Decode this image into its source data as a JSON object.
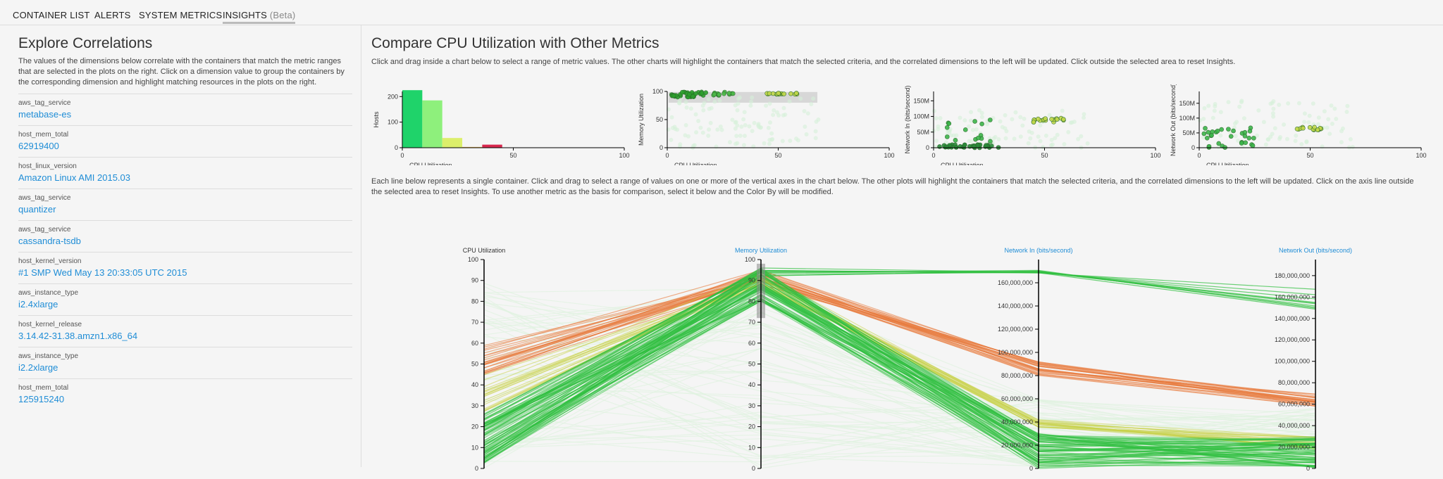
{
  "nav": {
    "tabs": [
      {
        "label": "CONTAINER LIST"
      },
      {
        "label": "ALERTS"
      },
      {
        "label": "SYSTEM METRICS"
      },
      {
        "label": "INSIGHTS",
        "suffix": "(Beta)"
      }
    ]
  },
  "correlations": {
    "title": "Explore Correlations",
    "description": "The values of the dimensions below correlate with the containers that match the metric ranges that are selected in the plots on the right. Click on a dimension value to group the containers by the corresponding dimension and highlight matching resources in the plots on the right.",
    "items": [
      {
        "key": "aws_tag_service",
        "value": "metabase-es"
      },
      {
        "key": "host_mem_total",
        "value": "62919400"
      },
      {
        "key": "host_linux_version",
        "value": "Amazon Linux AMI 2015.03"
      },
      {
        "key": "aws_tag_service",
        "value": "quantizer"
      },
      {
        "key": "aws_tag_service",
        "value": "cassandra-tsdb"
      },
      {
        "key": "host_kernel_version",
        "value": "#1 SMP Wed May 13 20:33:05 UTC 2015"
      },
      {
        "key": "aws_instance_type",
        "value": "i2.4xlarge"
      },
      {
        "key": "host_kernel_release",
        "value": "3.14.42-31.38.amzn1.x86_64"
      },
      {
        "key": "aws_instance_type",
        "value": "i2.2xlarge"
      },
      {
        "key": "host_mem_total",
        "value": "125915240"
      }
    ]
  },
  "compare": {
    "title": "Compare CPU Utilization with Other Metrics",
    "description": "Click and drag inside a chart below to select a range of metric values. The other charts will highlight the containers that match the selected criteria, and the correlated dimensions to the left will be updated. Click outside the selected area to reset Insights.",
    "parallel_description": "Each line below represents a single container. Click and drag to select a range of values on one or more of the vertical axes in the chart below. The other plots will highlight the containers that match the selected criteria, and the correlated dimensions to the left will be updated. Click on the axis line outside the selected area to reset Insights. To use another metric as the basis for comparison, select it below and the Color By will be modified."
  },
  "colors": {
    "link": "#1f8dd6",
    "green": "#2ca02c",
    "bright_green": "#19c44f",
    "yellow_green": "#b9d24a",
    "orange": "#e8833a",
    "red": "#d62728"
  },
  "chart_data": [
    {
      "type": "bar",
      "xlabel": "CPU Utilization",
      "ylabel": "Hosts",
      "xlim": [
        0,
        100
      ],
      "ylim": [
        0,
        220
      ],
      "x_ticks": [
        "0",
        "50",
        "100"
      ],
      "y_ticks": [
        "0",
        "100",
        "200"
      ],
      "bins": [
        {
          "x0": 0,
          "x1": 9,
          "value": 225,
          "color": "#1fd36a"
        },
        {
          "x0": 9,
          "x1": 18,
          "value": 185,
          "color": "#8ef07c"
        },
        {
          "x0": 18,
          "x1": 27,
          "value": 38,
          "color": "#dcef6b"
        },
        {
          "x0": 27,
          "x1": 36,
          "value": 3,
          "color": "#f1c05a"
        },
        {
          "x0": 36,
          "x1": 45,
          "value": 12,
          "color": "#d8284e"
        }
      ]
    },
    {
      "type": "scatter",
      "xlabel": "CPU Utilization",
      "ylabel": "Memory Utilization",
      "xlim": [
        0,
        100
      ],
      "ylim": [
        0,
        100
      ],
      "x_ticks": [
        "0",
        "50",
        "100"
      ],
      "y_ticks": [
        "0",
        "50",
        "100"
      ],
      "clusters": [
        {
          "x": [
            2,
            18
          ],
          "y": [
            90,
            99
          ],
          "n": 40,
          "color": "#2ca02c",
          "r": 3
        },
        {
          "x": [
            20,
            30
          ],
          "y": [
            92,
            99
          ],
          "n": 14,
          "color": "#4cb848",
          "r": 3
        },
        {
          "x": [
            44,
            60
          ],
          "y": [
            95,
            97
          ],
          "n": 18,
          "color": "#c2d84a",
          "r": 3
        },
        {
          "x": [
            0,
            70
          ],
          "y": [
            0,
            90
          ],
          "n": 110,
          "color": "#d6f0d8",
          "r": 3
        }
      ]
    },
    {
      "type": "scatter",
      "xlabel": "CPU Utilization",
      "ylabel": "Network In (bits/second)",
      "xlim": [
        0,
        100
      ],
      "ylim": [
        0,
        180000000
      ],
      "x_ticks": [
        "0",
        "50",
        "100"
      ],
      "y_ticks": [
        "0",
        "50M",
        "100M",
        "150M"
      ],
      "clusters": [
        {
          "x": [
            2,
            30
          ],
          "y": [
            0,
            10000000
          ],
          "n": 35,
          "color": "#2a8a3a",
          "r": 3
        },
        {
          "x": [
            4,
            26
          ],
          "y": [
            20000000,
            90000000
          ],
          "n": 14,
          "color": "#3cb54a",
          "r": 3
        },
        {
          "x": [
            44,
            60
          ],
          "y": [
            80000000,
            95000000
          ],
          "n": 18,
          "color": "#c2d84a",
          "r": 3
        },
        {
          "x": [
            0,
            70
          ],
          "y": [
            0,
            120000000
          ],
          "n": 90,
          "color": "#d6f0d8",
          "r": 3
        }
      ]
    },
    {
      "type": "scatter",
      "xlabel": "CPU Utilization",
      "ylabel": "Network Out (bits/second)",
      "xlim": [
        0,
        100
      ],
      "ylim": [
        0,
        190000000
      ],
      "x_ticks": [
        "0",
        "50",
        "100"
      ],
      "y_ticks": [
        "0",
        "50M",
        "100M",
        "150M"
      ],
      "clusters": [
        {
          "x": [
            2,
            25
          ],
          "y": [
            0,
            70000000
          ],
          "n": 30,
          "color": "#3cb54a",
          "r": 3
        },
        {
          "x": [
            44,
            55
          ],
          "y": [
            60000000,
            70000000
          ],
          "n": 14,
          "color": "#c2d84a",
          "r": 3
        },
        {
          "x": [
            0,
            70
          ],
          "y": [
            0,
            160000000
          ],
          "n": 80,
          "color": "#d6f0d8",
          "r": 3
        }
      ]
    },
    {
      "type": "parallel",
      "axes": [
        {
          "label": "CPU Utilization",
          "max": 100,
          "ticks": [
            "0",
            "10",
            "20",
            "30",
            "40",
            "50",
            "60",
            "70",
            "80",
            "90",
            "100"
          ]
        },
        {
          "label": "Memory Utilization",
          "max": 100,
          "ticks": [
            "0",
            "10",
            "20",
            "30",
            "40",
            "50",
            "60",
            "70",
            "80",
            "90",
            "100"
          ]
        },
        {
          "label": "Network In (bits/second)",
          "max": 180000000,
          "ticks": [
            "0",
            "20,000,000",
            "40,000,000",
            "60,000,000",
            "80,000,000",
            "100,000,000",
            "120,000,000",
            "140,000,000",
            "160,000,000"
          ]
        },
        {
          "label": "Network Out (bits/second)",
          "max": 195000000,
          "ticks": [
            "0",
            "20,000,000",
            "40,000,000",
            "60,000,000",
            "80,000,000",
            "100,000,000",
            "120,000,000",
            "140,000,000",
            "160,000,000",
            "180,000,000"
          ]
        }
      ],
      "groups": [
        {
          "color": "#dff2e0",
          "opacity": 0.7,
          "n": 60,
          "cpu": [
            0,
            90
          ],
          "mem": [
            0,
            90
          ],
          "netin": [
            0,
            60000000
          ],
          "netout": [
            0,
            60000000
          ]
        },
        {
          "color": "#e8793c",
          "opacity": 0.6,
          "n": 26,
          "cpu": [
            44,
            60
          ],
          "mem": [
            88,
            95
          ],
          "netin": [
            80000000,
            92000000
          ],
          "netout": [
            58000000,
            70000000
          ]
        },
        {
          "color": "#c8d24a",
          "opacity": 0.55,
          "n": 20,
          "cpu": [
            25,
            45
          ],
          "mem": [
            86,
            94
          ],
          "netin": [
            35000000,
            42000000
          ],
          "netout": [
            18000000,
            30000000
          ]
        },
        {
          "color": "#2fbf3f",
          "opacity": 0.55,
          "n": 70,
          "cpu": [
            2,
            25
          ],
          "mem": [
            80,
            96
          ],
          "netin": [
            0,
            30000000
          ],
          "netout": [
            0,
            30000000
          ]
        },
        {
          "color": "#2fbf3f",
          "opacity": 0.7,
          "n": 10,
          "cpu": [
            0,
            30
          ],
          "mem": [
            92,
            96
          ],
          "netin": [
            168000000,
            172000000
          ],
          "netout": [
            148000000,
            168000000
          ]
        }
      ]
    }
  ]
}
